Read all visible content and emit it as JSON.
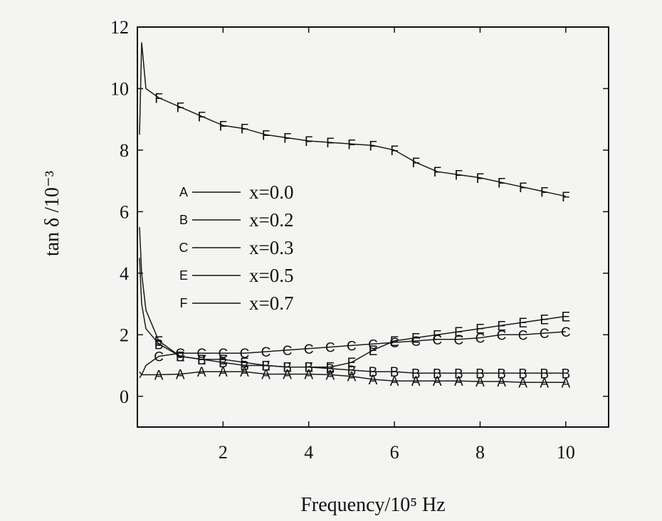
{
  "chart_data": {
    "type": "line",
    "xlabel": "Frequency/10⁵ Hz",
    "ylabel": "tan δ /10⁻³",
    "xlim": [
      0,
      11
    ],
    "ylim": [
      -1,
      12
    ],
    "xticks": [
      2,
      4,
      6,
      8,
      10
    ],
    "yticks": [
      0,
      2,
      4,
      6,
      8,
      10,
      12
    ],
    "grid": false,
    "legend_position": "center-left",
    "series": [
      {
        "name": "x=0.0",
        "marker": "A",
        "x": [
          0.05,
          0.1,
          0.2,
          0.5,
          1,
          1.5,
          2,
          2.5,
          3,
          3.5,
          4,
          4.5,
          5,
          5.5,
          6,
          6.5,
          7,
          7.5,
          8,
          8.5,
          9,
          9.5,
          10
        ],
        "y": [
          0.8,
          0.7,
          0.7,
          0.7,
          0.72,
          0.8,
          0.8,
          0.8,
          0.72,
          0.72,
          0.72,
          0.7,
          0.65,
          0.55,
          0.5,
          0.5,
          0.5,
          0.5,
          0.48,
          0.48,
          0.45,
          0.45,
          0.45
        ]
      },
      {
        "name": "x=0.2",
        "marker": "B",
        "x": [
          0.05,
          0.1,
          0.2,
          0.5,
          1,
          1.5,
          2,
          2.5,
          3,
          3.5,
          4,
          4.5,
          5,
          5.5,
          6,
          6.5,
          7,
          7.5,
          8,
          8.5,
          9,
          9.5,
          10
        ],
        "y": [
          4.5,
          3.0,
          2.2,
          1.7,
          1.3,
          1.2,
          1.1,
          1.0,
          1.0,
          0.95,
          0.95,
          0.9,
          0.85,
          0.8,
          0.8,
          0.75,
          0.75,
          0.75,
          0.75,
          0.75,
          0.75,
          0.75,
          0.75
        ]
      },
      {
        "name": "x=0.3",
        "marker": "C",
        "x": [
          0.05,
          0.1,
          0.2,
          0.5,
          1,
          1.5,
          2,
          2.5,
          3,
          3.5,
          4,
          4.5,
          5,
          5.5,
          6,
          6.5,
          7,
          7.5,
          8,
          8.5,
          9,
          9.5,
          10
        ],
        "y": [
          0.6,
          0.7,
          1.0,
          1.3,
          1.4,
          1.4,
          1.4,
          1.4,
          1.45,
          1.5,
          1.55,
          1.6,
          1.65,
          1.7,
          1.75,
          1.8,
          1.85,
          1.85,
          1.9,
          2.0,
          2.0,
          2.05,
          2.1
        ]
      },
      {
        "name": "x=0.5",
        "marker": "E",
        "x": [
          0.05,
          0.1,
          0.2,
          0.5,
          1,
          1.5,
          2,
          2.5,
          3,
          3.5,
          4,
          4.5,
          5,
          5.5,
          6,
          6.5,
          7,
          7.5,
          8,
          8.5,
          9,
          9.5,
          10
        ],
        "y": [
          5.5,
          4.0,
          2.8,
          1.8,
          1.3,
          1.2,
          1.2,
          1.1,
          1.0,
          0.95,
          0.95,
          0.95,
          1.1,
          1.5,
          1.8,
          1.9,
          2.0,
          2.1,
          2.2,
          2.3,
          2.4,
          2.5,
          2.6
        ]
      },
      {
        "name": "x=0.7",
        "marker": "F",
        "x": [
          0.05,
          0.1,
          0.2,
          0.5,
          1,
          1.5,
          2,
          2.5,
          3,
          3.5,
          4,
          4.5,
          5,
          5.5,
          6,
          6.5,
          7,
          7.5,
          8,
          8.5,
          9,
          9.5,
          10
        ],
        "y": [
          8.5,
          11.5,
          10.0,
          9.7,
          9.4,
          9.1,
          8.8,
          8.7,
          8.5,
          8.4,
          8.3,
          8.25,
          8.2,
          8.15,
          8.0,
          7.6,
          7.3,
          7.2,
          7.1,
          6.95,
          6.8,
          6.65,
          6.5
        ]
      }
    ]
  }
}
